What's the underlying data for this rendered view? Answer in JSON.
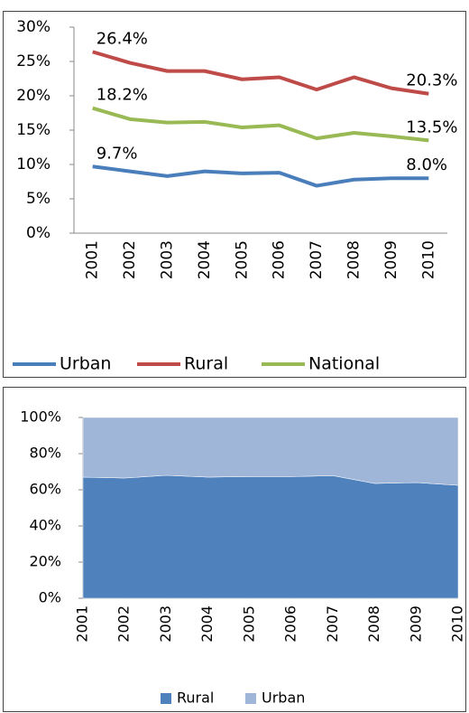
{
  "chart_data": [
    {
      "type": "line",
      "categories": [
        "2001",
        "2002",
        "2003",
        "2004",
        "2005",
        "2006",
        "2007",
        "2008",
        "2009",
        "2010"
      ],
      "series": [
        {
          "name": "Urban",
          "color": "#4a7ebb",
          "values": [
            9.7,
            9.0,
            8.3,
            9.0,
            8.7,
            8.8,
            6.9,
            7.8,
            8.0,
            8.0
          ],
          "value_labels": [
            "9.7%",
            null,
            null,
            null,
            null,
            null,
            null,
            null,
            null,
            "8.0%"
          ]
        },
        {
          "name": "Rural",
          "color": "#be4b48",
          "values": [
            26.4,
            24.8,
            23.6,
            23.6,
            22.4,
            22.7,
            20.9,
            22.7,
            21.1,
            20.3
          ],
          "value_labels": [
            "26.4%",
            null,
            null,
            null,
            null,
            null,
            null,
            null,
            null,
            "20.3%"
          ]
        },
        {
          "name": "National",
          "color": "#98b954",
          "values": [
            18.2,
            16.6,
            16.1,
            16.2,
            15.4,
            15.7,
            13.8,
            14.6,
            14.1,
            13.5
          ],
          "value_labels": [
            "18.2%",
            null,
            null,
            null,
            null,
            null,
            null,
            null,
            null,
            "13.5%"
          ]
        }
      ],
      "ylim": [
        0,
        30
      ],
      "yticks": [
        {
          "value": 0,
          "label": "0%"
        },
        {
          "value": 5,
          "label": "5%"
        },
        {
          "value": 10,
          "label": "10%"
        },
        {
          "value": 15,
          "label": "15%"
        },
        {
          "value": 20,
          "label": "20%"
        },
        {
          "value": 25,
          "label": "25%"
        },
        {
          "value": 30,
          "label": "30%"
        }
      ],
      "grid": false,
      "legend": "bottom"
    },
    {
      "type": "area",
      "stacked": true,
      "categories": [
        "2001",
        "2002",
        "2003",
        "2004",
        "2005",
        "2006",
        "2007",
        "2008",
        "2009",
        "2010"
      ],
      "series": [
        {
          "name": "Rural",
          "color": "#4f81bd",
          "values": [
            67,
            66.5,
            68,
            67,
            67.3,
            67.3,
            67.8,
            63.5,
            64,
            62.5
          ]
        },
        {
          "name": "Urban",
          "color": "#a0b6d8",
          "values": [
            33,
            33.5,
            32,
            33,
            32.7,
            32.7,
            32.2,
            36.5,
            36,
            37.5
          ]
        }
      ],
      "ylim": [
        0,
        100
      ],
      "yticks": [
        {
          "value": 0,
          "label": "0%"
        },
        {
          "value": 20,
          "label": "20%"
        },
        {
          "value": 40,
          "label": "40%"
        },
        {
          "value": 60,
          "label": "60%"
        },
        {
          "value": 80,
          "label": "80%"
        },
        {
          "value": 100,
          "label": "100%"
        }
      ],
      "grid": false,
      "legend": "bottom"
    }
  ]
}
